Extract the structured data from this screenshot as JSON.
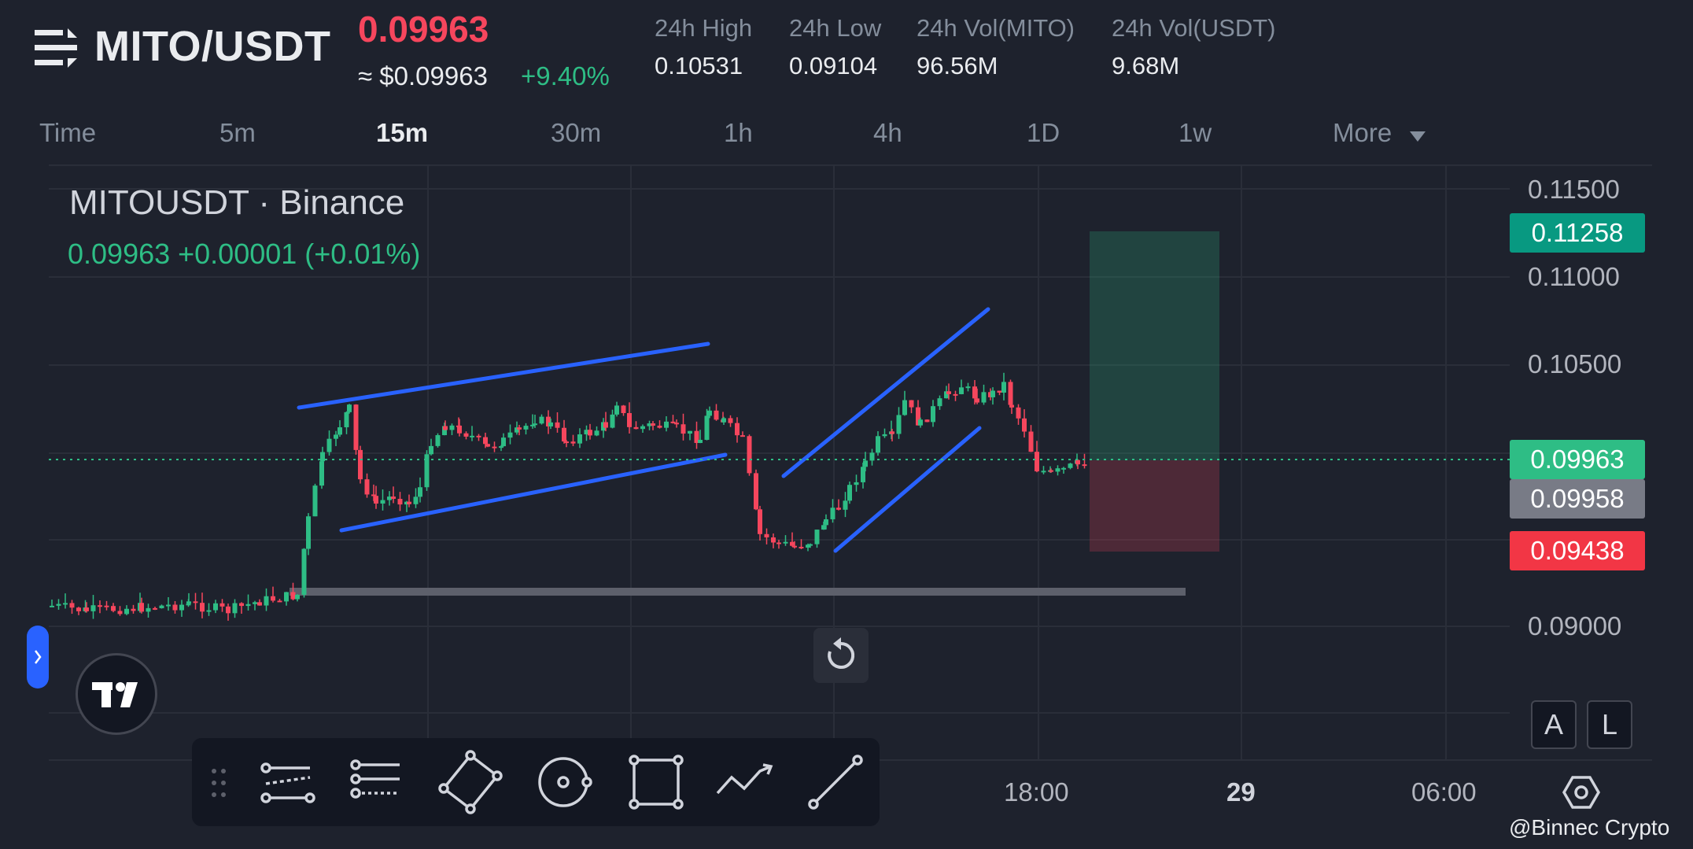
{
  "header": {
    "pair": "MITO/USDT",
    "last_price": "0.09963",
    "usd_price": "≈ $0.09963",
    "change_pct": "+9.40%",
    "stats": [
      {
        "label": "24h High",
        "value": "0.10531"
      },
      {
        "label": "24h Low",
        "value": "0.09104"
      },
      {
        "label": "24h Vol(MITO)",
        "value": "96.56M"
      },
      {
        "label": "24h Vol(USDT)",
        "value": "9.68M"
      }
    ]
  },
  "tabs": [
    {
      "label": "Time",
      "active": false
    },
    {
      "label": "5m",
      "active": false
    },
    {
      "label": "15m",
      "active": true
    },
    {
      "label": "30m",
      "active": false
    },
    {
      "label": "1h",
      "active": false
    },
    {
      "label": "4h",
      "active": false
    },
    {
      "label": "1D",
      "active": false
    },
    {
      "label": "1w",
      "active": false
    },
    {
      "label": "More",
      "active": false
    }
  ],
  "chart": {
    "symbol_title": "MITOUSDT · Binance",
    "ohlc": "0.09963  +0.00001 (+0.01%)",
    "price_ticks": [
      "0.11500",
      "0.11000",
      "0.10500",
      "0.09000"
    ],
    "badges": {
      "target": "0.11258",
      "current": "0.09963",
      "entry": "0.09958",
      "stop": "0.09438"
    },
    "time_ticks": [
      "18:00",
      "29",
      "06:00"
    ],
    "scale_buttons": [
      "A",
      "L"
    ],
    "colors": {
      "up": "#2ebd85",
      "down": "#f6465d",
      "trendline": "#2962ff",
      "background": "#1e222d"
    }
  },
  "toolbar": {
    "tools": [
      "parallel-channel-icon",
      "fib-retracement-icon",
      "xabcd-pattern-icon",
      "circle-icon",
      "rectangle-icon",
      "path-icon",
      "trend-line-icon"
    ]
  },
  "watermark": "@Binnec Crypto"
}
